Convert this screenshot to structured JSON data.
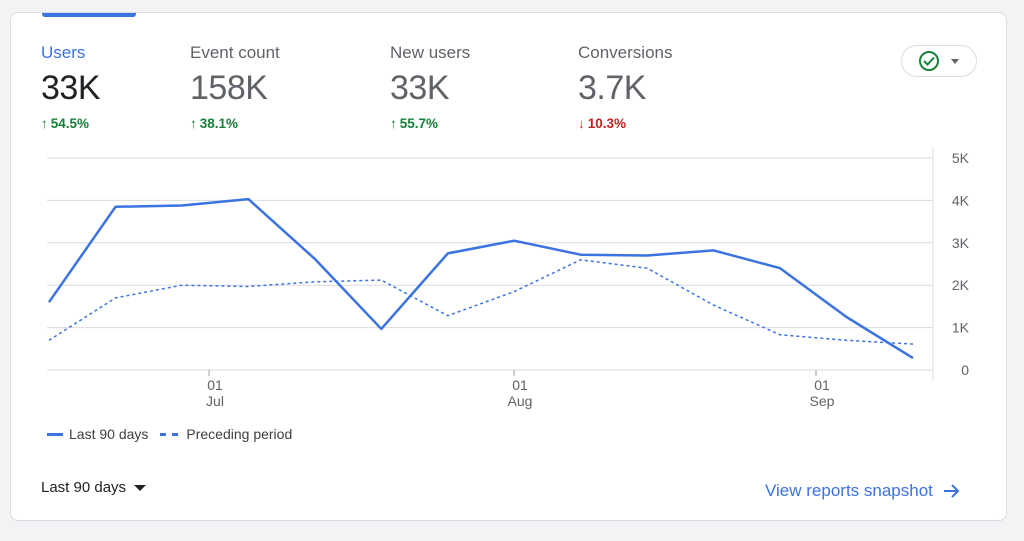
{
  "metrics": [
    {
      "label": "Users",
      "value": "33K",
      "delta": "54.5%",
      "direction": "up",
      "arrow": "↑"
    },
    {
      "label": "Event count",
      "value": "158K",
      "delta": "38.1%",
      "direction": "up",
      "arrow": "↑"
    },
    {
      "label": "New users",
      "value": "33K",
      "delta": "55.7%",
      "direction": "up",
      "arrow": "↑"
    },
    {
      "label": "Conversions",
      "value": "3.7K",
      "delta": "10.3%",
      "direction": "down",
      "arrow": "↓"
    }
  ],
  "status_button": {
    "icon": "check-circle-icon",
    "menu_icon": "chevron-down-icon"
  },
  "chart_data": {
    "type": "line",
    "x_tick_labels": [
      {
        "day": "01",
        "month": "Jul"
      },
      {
        "day": "01",
        "month": "Aug"
      },
      {
        "day": "01",
        "month": "Sep"
      }
    ],
    "y_tick_labels": [
      "5K",
      "4K",
      "3K",
      "2K",
      "1K",
      "0"
    ],
    "ylim": [
      0,
      5000
    ],
    "grid": true,
    "legend_position": "bottom-left",
    "series": [
      {
        "name": "Last 90 days",
        "style": "solid",
        "color": "#3b73e0",
        "values": [
          1600,
          3850,
          3880,
          4030,
          2620,
          970,
          2750,
          3050,
          2720,
          2700,
          2820,
          2400,
          1250,
          280
        ]
      },
      {
        "name": "Preceding period",
        "style": "dashed",
        "color": "#3b73e0",
        "values": [
          700,
          1700,
          2000,
          1970,
          2080,
          2120,
          1280,
          1850,
          2600,
          2400,
          1530,
          830,
          700,
          610
        ]
      }
    ]
  },
  "footer": {
    "period_label": "Last 90 days",
    "view_link": "View reports snapshot",
    "view_link_icon": "arrow-right-icon"
  }
}
